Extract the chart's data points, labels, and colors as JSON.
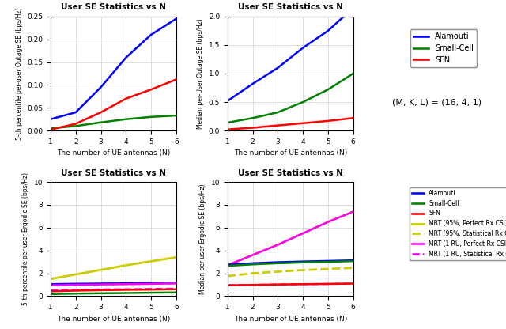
{
  "N": [
    1,
    2,
    3,
    4,
    5,
    6
  ],
  "top_left": {
    "title": "User SE Statistics vs N",
    "ylabel": "5-th percentile per-user Outage SE (bps/Hz)",
    "xlabel": "The number of UE antennas (N)",
    "ylim": [
      0,
      0.25
    ],
    "yticks": [
      0,
      0.05,
      0.1,
      0.15,
      0.2,
      0.25
    ],
    "alamouti": [
      0.025,
      0.04,
      0.095,
      0.16,
      0.21,
      0.245
    ],
    "smallcell": [
      0.005,
      0.01,
      0.018,
      0.025,
      0.03,
      0.033
    ],
    "sfn": [
      0.002,
      0.015,
      0.04,
      0.07,
      0.09,
      0.112
    ]
  },
  "top_right": {
    "title": "User SE Statistics vs N",
    "ylabel": "Median per-User Outage SE (bps/Hz)",
    "xlabel": "The number of UE antennas (N)",
    "ylim": [
      0,
      2
    ],
    "yticks": [
      0,
      0.5,
      1.0,
      1.5,
      2.0
    ],
    "alamouti": [
      0.52,
      0.82,
      1.1,
      1.45,
      1.75,
      2.15
    ],
    "smallcell": [
      0.14,
      0.22,
      0.32,
      0.5,
      0.72,
      1.0
    ],
    "sfn": [
      0.02,
      0.05,
      0.09,
      0.13,
      0.17,
      0.22
    ]
  },
  "bottom_left": {
    "title": "User SE Statistics vs N",
    "ylabel": "5-th percentile per-user Ergodic SE (bps/Hz)",
    "xlabel": "The number of UE antennas (N)",
    "ylim": [
      0,
      10
    ],
    "yticks": [
      0,
      2,
      4,
      6,
      8,
      10
    ],
    "alamouti": [
      1.05,
      1.08,
      1.1,
      1.12,
      1.13,
      1.15
    ],
    "smallcell": [
      0.18,
      0.22,
      0.25,
      0.27,
      0.3,
      0.32
    ],
    "sfn": [
      0.42,
      0.48,
      0.52,
      0.55,
      0.57,
      0.6
    ],
    "mrt95perf": [
      1.5,
      1.9,
      2.3,
      2.7,
      3.05,
      3.4
    ],
    "mrt95stat": [
      1.0,
      1.02,
      1.05,
      1.07,
      1.09,
      1.12
    ],
    "mrt1perf": [
      0.95,
      0.99,
      1.02,
      1.05,
      1.08,
      1.12
    ],
    "mrt1stat": [
      0.52,
      0.55,
      0.58,
      0.6,
      0.63,
      0.65
    ]
  },
  "bottom_right": {
    "title": "User SE Statistics vs N",
    "ylabel": "Median per-user Ergodic SE (bps/Hz)",
    "xlabel": "The number of UE antennas (N)",
    "ylim": [
      0,
      10
    ],
    "yticks": [
      0,
      2,
      4,
      6,
      8,
      10
    ],
    "alamouti": [
      2.75,
      2.88,
      2.97,
      3.03,
      3.08,
      3.13
    ],
    "smallcell": [
      2.65,
      2.78,
      2.88,
      2.95,
      3.0,
      3.07
    ],
    "sfn": [
      0.95,
      0.98,
      1.02,
      1.05,
      1.07,
      1.1
    ],
    "mrt95perf": [
      2.7,
      3.6,
      4.5,
      5.5,
      6.5,
      7.4
    ],
    "mrt95stat": [
      1.75,
      2.0,
      2.15,
      2.28,
      2.38,
      2.48
    ],
    "mrt1perf": [
      2.7,
      3.6,
      4.5,
      5.5,
      6.5,
      7.4
    ],
    "mrt1stat": [
      0.95,
      0.98,
      1.02,
      1.05,
      1.07,
      1.1
    ]
  },
  "colors": {
    "alamouti": "#0000FF",
    "smallcell": "#008000",
    "sfn": "#FF0000",
    "mrt95perf": "#CCCC00",
    "mrt95stat": "#CCCC00",
    "mrt1perf": "#FF00FF",
    "mrt1stat": "#FF00FF"
  },
  "annotation": "(M, K, L) = (16, 4, 1)"
}
